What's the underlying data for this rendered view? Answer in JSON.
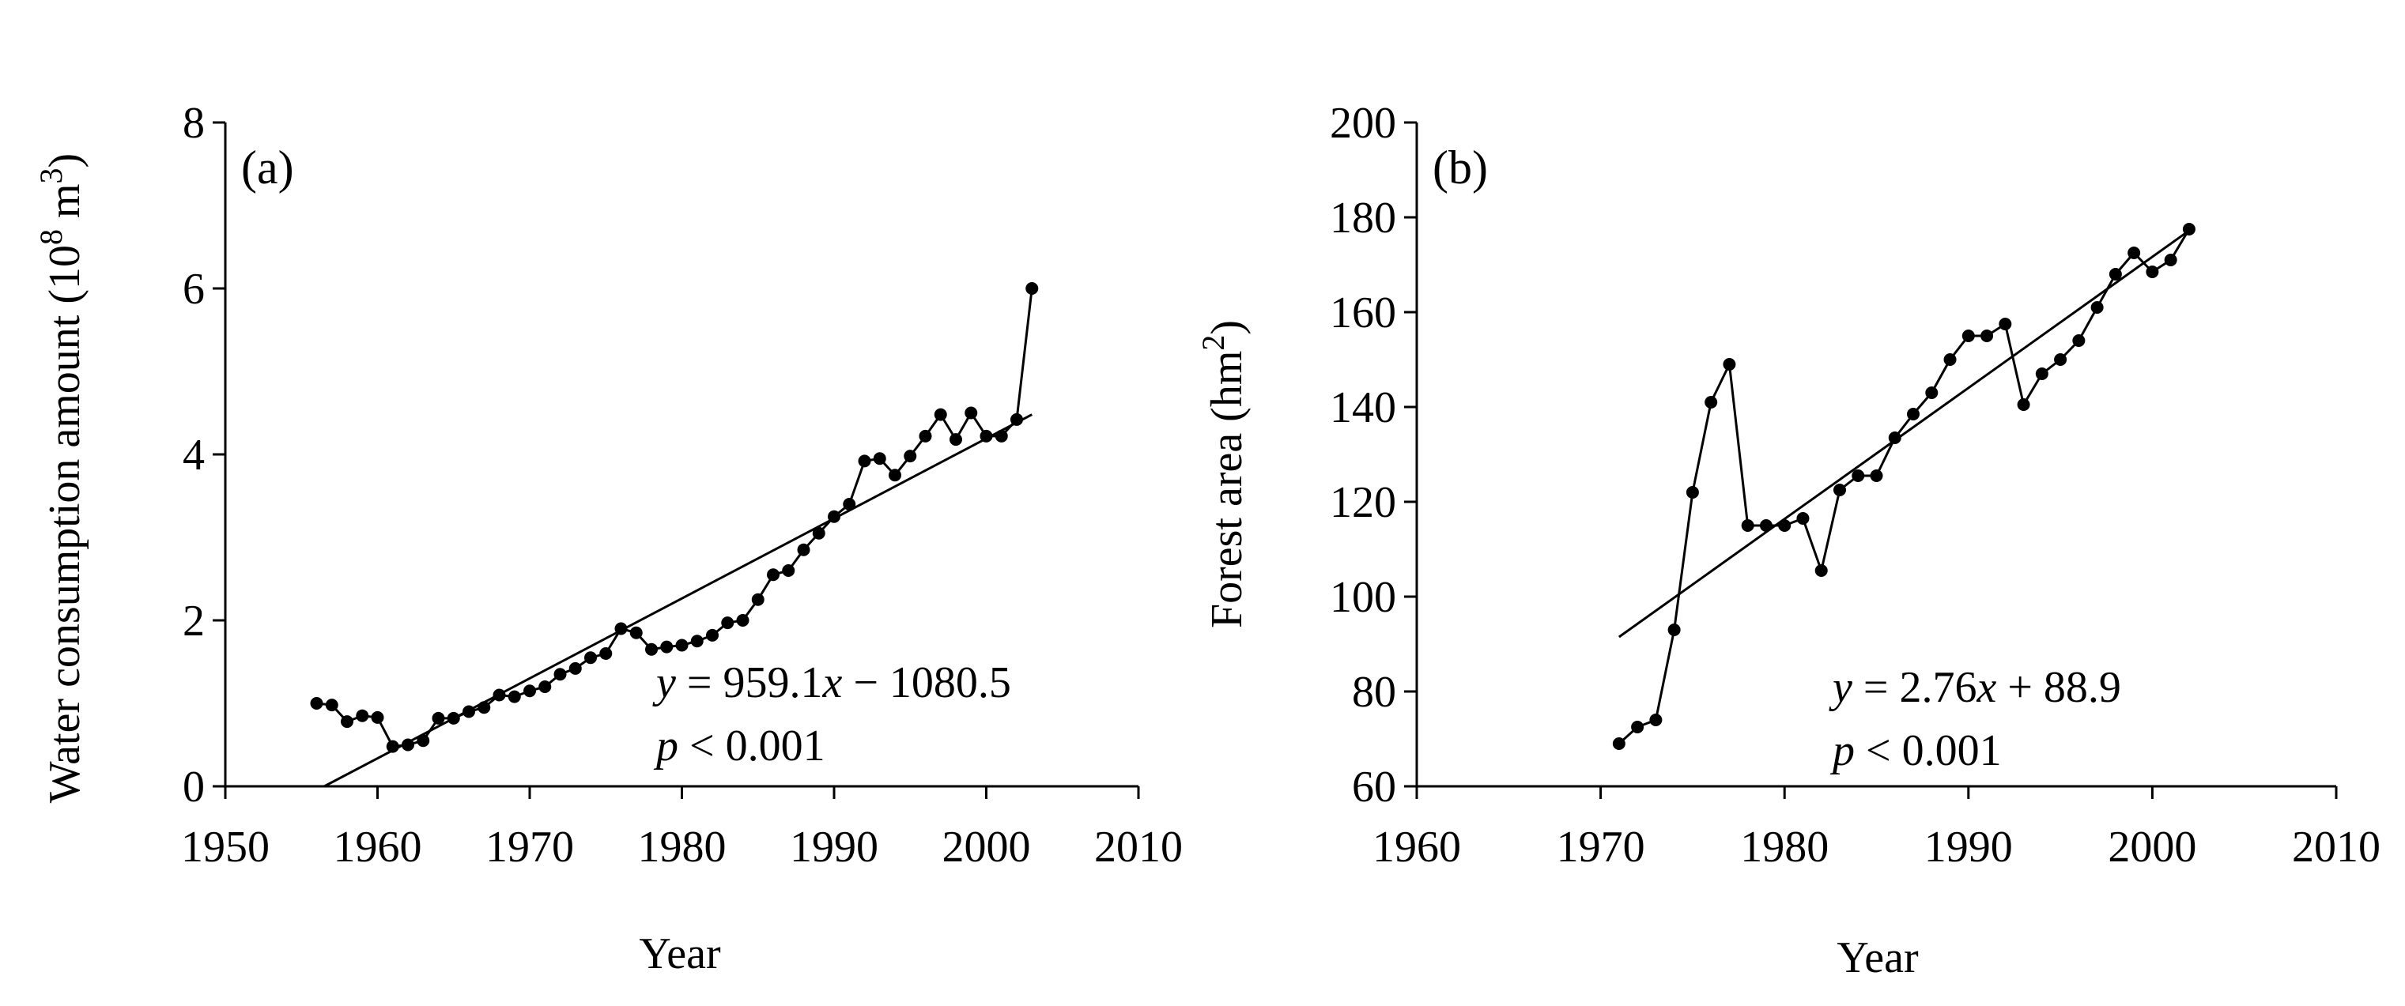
{
  "chart_data": [
    {
      "type": "line",
      "panel_label": "(a)",
      "xlabel": "Year",
      "ylabel": "Water consumption amount (10",
      "ylabel_exp1": "8",
      "ylabel_mid": " m",
      "ylabel_exp2": "3",
      "ylabel_end": ")",
      "xlim": [
        1950,
        2010
      ],
      "ylim": [
        0,
        8
      ],
      "xticks": [
        1950,
        1960,
        1970,
        1980,
        1990,
        2000,
        2010
      ],
      "yticks": [
        0,
        2,
        4,
        6,
        8
      ],
      "equation": {
        "y": "y",
        "eq": " = 959.1",
        "x": "x",
        "rest": " − 1080.5"
      },
      "pvalue": {
        "p": "p",
        "rest": " < 0.001"
      },
      "trendline": {
        "x": [
          1956.5,
          2003
        ],
        "y": [
          0.0,
          4.48
        ]
      },
      "series": [
        {
          "x": [
            1956,
            1957,
            1958,
            1959,
            1960,
            1961,
            1962,
            1963,
            1964,
            1965,
            1966,
            1967,
            1968,
            1969,
            1970,
            1971,
            1972,
            1973,
            1974,
            1975,
            1976,
            1977,
            1978,
            1979,
            1980,
            1981,
            1982,
            1983,
            1984,
            1985,
            1986,
            1987,
            1988,
            1989,
            1990,
            1991,
            1992,
            1993,
            1994,
            1995,
            1996,
            1997,
            1998,
            1999,
            2000,
            2001,
            2002,
            2003
          ],
          "y": [
            1.0,
            0.98,
            0.78,
            0.85,
            0.83,
            0.48,
            0.5,
            0.55,
            0.82,
            0.82,
            0.9,
            0.95,
            1.1,
            1.08,
            1.15,
            1.2,
            1.35,
            1.42,
            1.55,
            1.6,
            1.9,
            1.85,
            1.65,
            1.68,
            1.7,
            1.75,
            1.82,
            1.97,
            2.0,
            2.25,
            2.55,
            2.6,
            2.85,
            3.05,
            3.25,
            3.4,
            3.92,
            3.95,
            3.75,
            3.98,
            4.22,
            4.48,
            4.18,
            4.5,
            4.22,
            4.22,
            4.42,
            6.0
          ]
        }
      ]
    },
    {
      "type": "line",
      "panel_label": "(b)",
      "xlabel": "Year",
      "ylabel": "Forest area (hm",
      "ylabel_exp": "2",
      "ylabel_end": ")",
      "xlim": [
        1960,
        2010
      ],
      "ylim": [
        60,
        200
      ],
      "xticks": [
        1960,
        1970,
        1980,
        1990,
        2000,
        2010
      ],
      "yticks": [
        60,
        80,
        100,
        120,
        140,
        160,
        180,
        200
      ],
      "equation": {
        "y": "y",
        "eq": " = 2.76",
        "x": "x",
        "rest": " + 88.9"
      },
      "pvalue": {
        "p": "p",
        "rest": " < 0.001"
      },
      "trendline": {
        "x": [
          1971,
          2002
        ],
        "y": [
          91.5,
          177.2
        ]
      },
      "series": [
        {
          "x": [
            1971,
            1972,
            1973,
            1974,
            1975,
            1976,
            1977,
            1978,
            1979,
            1980,
            1981,
            1982,
            1983,
            1984,
            1985,
            1986,
            1987,
            1988,
            1989,
            1990,
            1991,
            1992,
            1993,
            1994,
            1995,
            1996,
            1997,
            1998,
            1999,
            2000,
            2001,
            2002
          ],
          "y": [
            69,
            72.5,
            74,
            93,
            122,
            141,
            149,
            115,
            115,
            115,
            116.5,
            105.5,
            122.5,
            125.5,
            125.5,
            133.5,
            138.5,
            143,
            150,
            155,
            155,
            157.5,
            140.5,
            147,
            150,
            154,
            161,
            168,
            172.5,
            168.5,
            171,
            177.5
          ]
        }
      ]
    }
  ]
}
